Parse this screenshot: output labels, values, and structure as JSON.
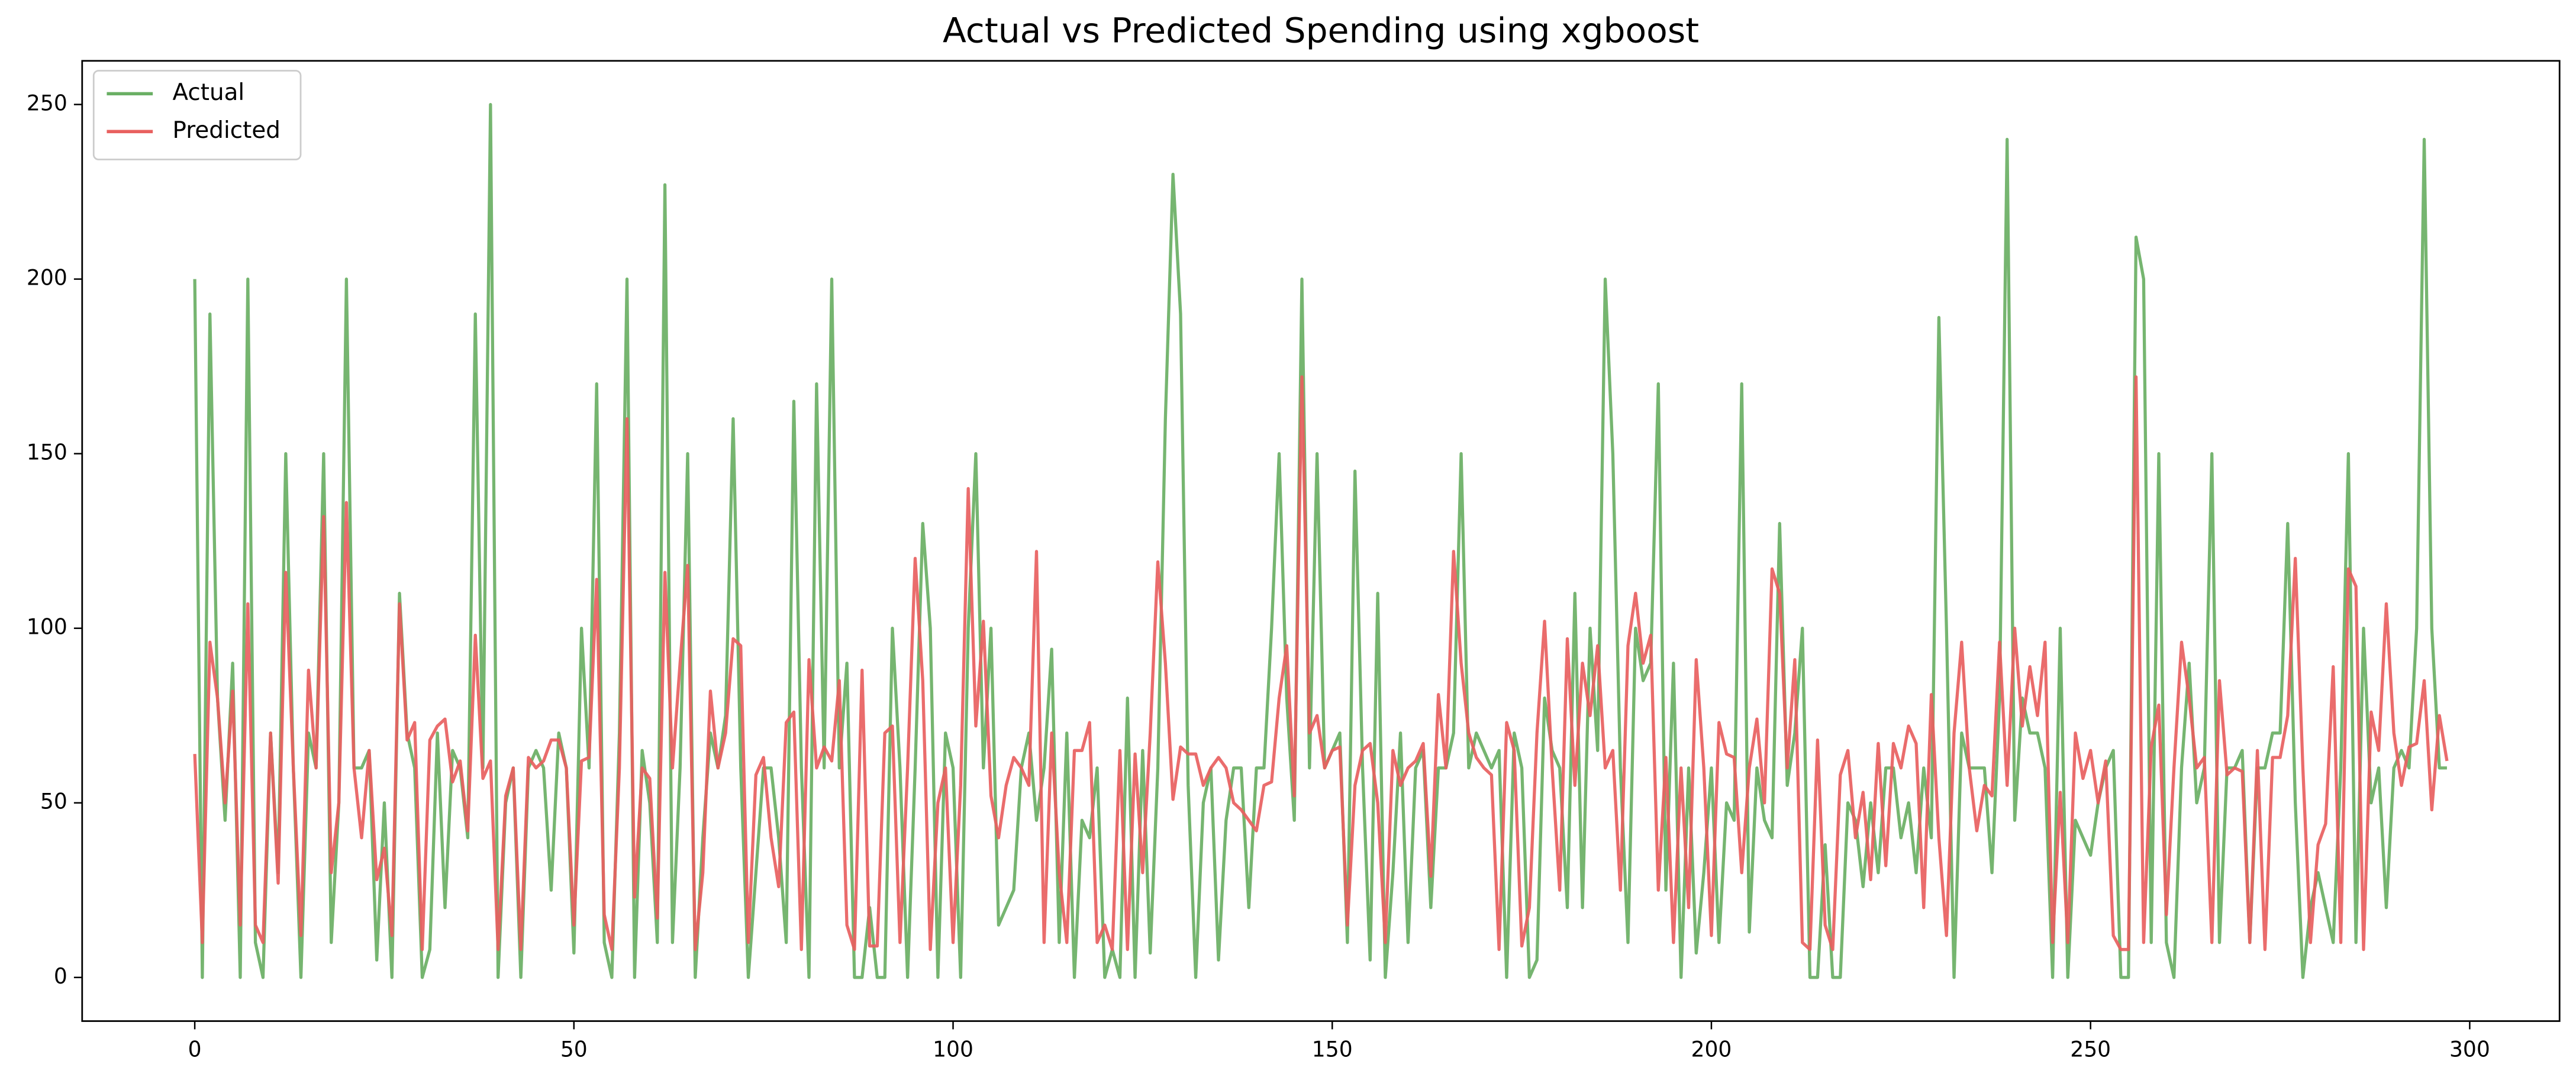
{
  "chart_data": {
    "type": "line",
    "title": "Actual vs Predicted Spending using xgboost",
    "x": [
      0,
      1,
      2,
      3,
      4,
      5,
      6,
      7,
      8,
      9,
      10,
      11,
      12,
      13,
      14,
      15,
      16,
      17,
      18,
      19,
      20,
      21,
      22,
      23,
      24,
      25,
      26,
      27,
      28,
      29,
      30,
      31,
      32,
      33,
      34,
      35,
      36,
      37,
      38,
      39,
      40,
      41,
      42,
      43,
      44,
      45,
      46,
      47,
      48,
      49,
      50,
      51,
      52,
      53,
      54,
      55,
      56,
      57,
      58,
      59,
      60,
      61,
      62,
      63,
      64,
      65,
      66,
      67,
      68,
      69,
      70,
      71,
      72,
      73,
      74,
      75,
      76,
      77,
      78,
      79,
      80,
      81,
      82,
      83,
      84,
      85,
      86,
      87,
      88,
      89,
      90,
      91,
      92,
      93,
      94,
      95,
      96,
      97,
      98,
      99,
      100,
      101,
      102,
      103,
      104,
      105,
      106,
      107,
      108,
      109,
      110,
      111,
      112,
      113,
      114,
      115,
      116,
      117,
      118,
      119,
      120,
      121,
      122,
      123,
      124,
      125,
      126,
      127,
      128,
      129,
      130,
      131,
      132,
      133,
      134,
      135,
      136,
      137,
      138,
      139,
      140,
      141,
      142,
      143,
      144,
      145,
      146,
      147,
      148,
      149,
      150,
      151,
      152,
      153,
      154,
      155,
      156,
      157,
      158,
      159,
      160,
      161,
      162,
      163,
      164,
      165,
      166,
      167,
      168,
      169,
      170,
      171,
      172,
      173,
      174,
      175,
      176,
      177,
      178,
      179,
      180,
      181,
      182,
      183,
      184,
      185,
      186,
      187,
      188,
      189,
      190,
      191,
      192,
      193,
      194,
      195,
      196,
      197,
      198,
      199,
      200,
      201,
      202,
      203,
      204,
      205,
      206,
      207,
      208,
      209,
      210,
      211,
      212,
      213,
      214,
      215,
      216,
      217,
      218,
      219,
      220,
      221,
      222,
      223,
      224,
      225,
      226,
      227,
      228,
      229,
      230,
      231,
      232,
      233,
      234,
      235,
      236,
      237,
      238,
      239,
      240,
      241,
      242,
      243,
      244,
      245,
      246,
      247,
      248,
      249,
      250,
      251,
      252,
      253,
      254,
      255,
      256,
      257,
      258,
      259,
      260,
      261,
      262,
      263,
      264,
      265,
      266,
      267,
      268,
      269,
      270,
      271,
      272,
      273,
      274,
      275,
      276,
      277,
      278,
      279,
      280,
      281,
      282,
      283,
      284,
      285,
      286,
      287,
      288,
      289,
      290,
      291,
      292,
      293,
      294,
      295,
      296,
      297
    ],
    "series": [
      {
        "name": "Actual",
        "color": "#6aaf64",
        "values": [
          200,
          0,
          190,
          80,
          45,
          90,
          0,
          200,
          10,
          0,
          70,
          30,
          150,
          60,
          0,
          70,
          60,
          150,
          10,
          50,
          200,
          60,
          60,
          65,
          5,
          50,
          0,
          110,
          70,
          60,
          0,
          8,
          70,
          20,
          65,
          60,
          40,
          190,
          60,
          250,
          0,
          50,
          60,
          0,
          60,
          65,
          60,
          25,
          70,
          60,
          7,
          100,
          60,
          170,
          10,
          0,
          70,
          200,
          0,
          65,
          50,
          10,
          227,
          10,
          60,
          150,
          0,
          40,
          70,
          60,
          75,
          160,
          60,
          0,
          30,
          60,
          60,
          40,
          10,
          165,
          60,
          0,
          170,
          60,
          200,
          60,
          90,
          0,
          0,
          20,
          0,
          0,
          100,
          60,
          0,
          60,
          130,
          100,
          0,
          70,
          60,
          0,
          100,
          150,
          60,
          100,
          15,
          20,
          25,
          60,
          70,
          45,
          60,
          94,
          10,
          70,
          0,
          45,
          40,
          60,
          0,
          8,
          0,
          80,
          0,
          65,
          7,
          60,
          160,
          230,
          190,
          55,
          0,
          50,
          60,
          5,
          45,
          60,
          60,
          20,
          60,
          60,
          100,
          150,
          80,
          45,
          200,
          60,
          150,
          60,
          65,
          70,
          10,
          145,
          60,
          5,
          110,
          0,
          30,
          70,
          10,
          60,
          65,
          20,
          60,
          60,
          70,
          150,
          60,
          70,
          65,
          60,
          65,
          0,
          70,
          60,
          0,
          5,
          80,
          65,
          60,
          20,
          110,
          20,
          100,
          65,
          200,
          150,
          60,
          10,
          100,
          85,
          90,
          170,
          25,
          90,
          0,
          60,
          7,
          30,
          60,
          10,
          50,
          45,
          170,
          13,
          60,
          45,
          40,
          130,
          55,
          70,
          100,
          0,
          0,
          38,
          0,
          0,
          50,
          45,
          26,
          50,
          30,
          60,
          60,
          40,
          50,
          30,
          60,
          40,
          189,
          100,
          0,
          70,
          60,
          60,
          60,
          30,
          80,
          240,
          45,
          80,
          70,
          70,
          60,
          0,
          100,
          0,
          45,
          40,
          35,
          50,
          60,
          65,
          0,
          0,
          212,
          200,
          10,
          150,
          10,
          0,
          60,
          90,
          50,
          60,
          150,
          10,
          60,
          60,
          65,
          10,
          60,
          60,
          70,
          70,
          130,
          50,
          0,
          20,
          30,
          20,
          10,
          60,
          150,
          10,
          100,
          50,
          60,
          20,
          60,
          65,
          60,
          100,
          240,
          100,
          60,
          60
        ]
      },
      {
        "name": "Predicted",
        "color": "#e8605f",
        "values": [
          64,
          10,
          96,
          80,
          50,
          82,
          15,
          107,
          15,
          10,
          70,
          27,
          116,
          60,
          12,
          88,
          60,
          132,
          30,
          50,
          136,
          60,
          40,
          65,
          28,
          37,
          12,
          107,
          68,
          73,
          8,
          68,
          72,
          74,
          56,
          62,
          42,
          98,
          57,
          62,
          8,
          52,
          60,
          8,
          63,
          60,
          62,
          68,
          68,
          60,
          15,
          62,
          63,
          114,
          18,
          8,
          60,
          160,
          23,
          60,
          57,
          17,
          116,
          60,
          90,
          118,
          8,
          30,
          82,
          60,
          70,
          97,
          95,
          10,
          58,
          63,
          40,
          26,
          73,
          76,
          8,
          91,
          60,
          66,
          62,
          85,
          15,
          8,
          88,
          9,
          9,
          70,
          72,
          10,
          60,
          120,
          85,
          8,
          50,
          60,
          10,
          55,
          140,
          72,
          102,
          52,
          40,
          55,
          63,
          60,
          55,
          122,
          10,
          70,
          30,
          10,
          65,
          65,
          73,
          10,
          15,
          8,
          65,
          8,
          64,
          30,
          70,
          119,
          90,
          51,
          66,
          64,
          64,
          55,
          60,
          63,
          60,
          50,
          48,
          45,
          42,
          55,
          56,
          80,
          95,
          52,
          172,
          70,
          75,
          60,
          65,
          66,
          15,
          55,
          65,
          67,
          50,
          10,
          65,
          55,
          60,
          62,
          67,
          29,
          81,
          60,
          122,
          90,
          70,
          63,
          60,
          58,
          8,
          73,
          65,
          9,
          20,
          70,
          102,
          60,
          25,
          97,
          55,
          90,
          75,
          95,
          60,
          65,
          25,
          95,
          110,
          90,
          98,
          25,
          63,
          10,
          60,
          20,
          91,
          60,
          12,
          73,
          64,
          63,
          30,
          60,
          74,
          50,
          117,
          110,
          60,
          91,
          10,
          8,
          68,
          15,
          8,
          58,
          65,
          40,
          53,
          28,
          67,
          32,
          67,
          60,
          72,
          67,
          20,
          81,
          40,
          12,
          70,
          96,
          60,
          42,
          55,
          52,
          96,
          55,
          100,
          72,
          89,
          75,
          96,
          10,
          53,
          10,
          70,
          57,
          65,
          50,
          62,
          12,
          8,
          8,
          172,
          10,
          66,
          78,
          18,
          60,
          96,
          80,
          60,
          63,
          10,
          85,
          58,
          60,
          59,
          10,
          65,
          8,
          63,
          63,
          75,
          120,
          60,
          10,
          38,
          44,
          89,
          10,
          117,
          112,
          8,
          76,
          65,
          107,
          70,
          55,
          66,
          67,
          85,
          48,
          75,
          62
        ]
      }
    ],
    "xlim": [
      -14.85,
      311.85
    ],
    "ylim": [
      -12.5,
      262.5
    ],
    "xticks": [
      0,
      50,
      100,
      150,
      200,
      250,
      300
    ],
    "yticks": [
      0,
      50,
      100,
      150,
      200,
      250
    ],
    "grid": false,
    "legend": "upper left"
  }
}
